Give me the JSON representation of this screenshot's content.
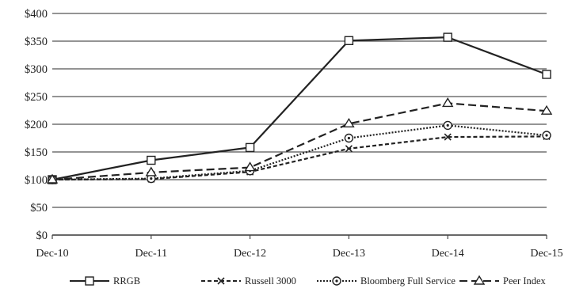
{
  "chart_data": {
    "type": "line",
    "title": "",
    "xlabel": "",
    "ylabel": "",
    "categories": [
      "Dec-10",
      "Dec-11",
      "Dec-12",
      "Dec-13",
      "Dec-14",
      "Dec-15"
    ],
    "ylim": [
      0,
      400
    ],
    "yticks": [
      0,
      50,
      100,
      150,
      200,
      250,
      300,
      350,
      400
    ],
    "ytick_labels": [
      "$0",
      "$50",
      "$100",
      "$150",
      "$200",
      "$250",
      "$300",
      "$350",
      "$400"
    ],
    "grid": true,
    "legend_position": "bottom",
    "series": [
      {
        "name": "RRGB",
        "values": [
          100,
          135,
          158,
          351,
          357,
          290
        ],
        "marker": "square",
        "dash": "solid",
        "color": "#222222"
      },
      {
        "name": "Russell 3000",
        "values": [
          100,
          101,
          114,
          156,
          177,
          178
        ],
        "marker": "x",
        "dash": "short-dash",
        "color": "#222222"
      },
      {
        "name": "Bloomberg Full Service",
        "values": [
          100,
          102,
          116,
          175,
          198,
          180
        ],
        "marker": "circle",
        "dash": "dotted",
        "color": "#222222"
      },
      {
        "name": "Peer Index",
        "values": [
          100,
          113,
          122,
          201,
          238,
          224
        ],
        "marker": "triangle",
        "dash": "long-dash",
        "color": "#222222"
      }
    ],
    "colors": {
      "line": "#222222",
      "grid": "#555555",
      "axis": "#444444"
    }
  }
}
